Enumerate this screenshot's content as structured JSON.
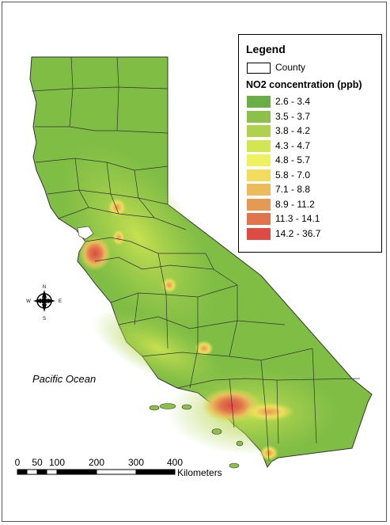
{
  "legend": {
    "title": "Legend",
    "county_label": "County",
    "heading": "NO2 concentration (ppb)",
    "classes": [
      {
        "label": "2.6 - 3.4",
        "color": "#6aae45"
      },
      {
        "label": "3.5 - 3.7",
        "color": "#8cc04a"
      },
      {
        "label": "3.8 - 4.2",
        "color": "#aed24e"
      },
      {
        "label": "4.3 - 4.7",
        "color": "#d2e553"
      },
      {
        "label": "4.8 - 5.7",
        "color": "#eef25e"
      },
      {
        "label": "5.8 - 7.0",
        "color": "#f2dc5e"
      },
      {
        "label": "7.1 - 8.8",
        "color": "#ebbb5c"
      },
      {
        "label": "8.9 - 11.2",
        "color": "#e49a52"
      },
      {
        "label": "11.3 - 14.1",
        "color": "#e1744b"
      },
      {
        "label": "14.2 - 36.7",
        "color": "#dd4b45"
      }
    ]
  },
  "map": {
    "ocean_label": "Pacific Ocean",
    "north_arrow": {
      "n": "N",
      "s": "S",
      "e": "E",
      "w": "W"
    },
    "scale": {
      "ticks": [
        "0",
        "50",
        "100",
        "200",
        "300",
        "400"
      ],
      "unit": "Kilometers"
    },
    "colors": {
      "base": "#7fbd45",
      "light": "#a6cf4d",
      "hot": "#dd4b45",
      "boundary": "#333333"
    }
  }
}
